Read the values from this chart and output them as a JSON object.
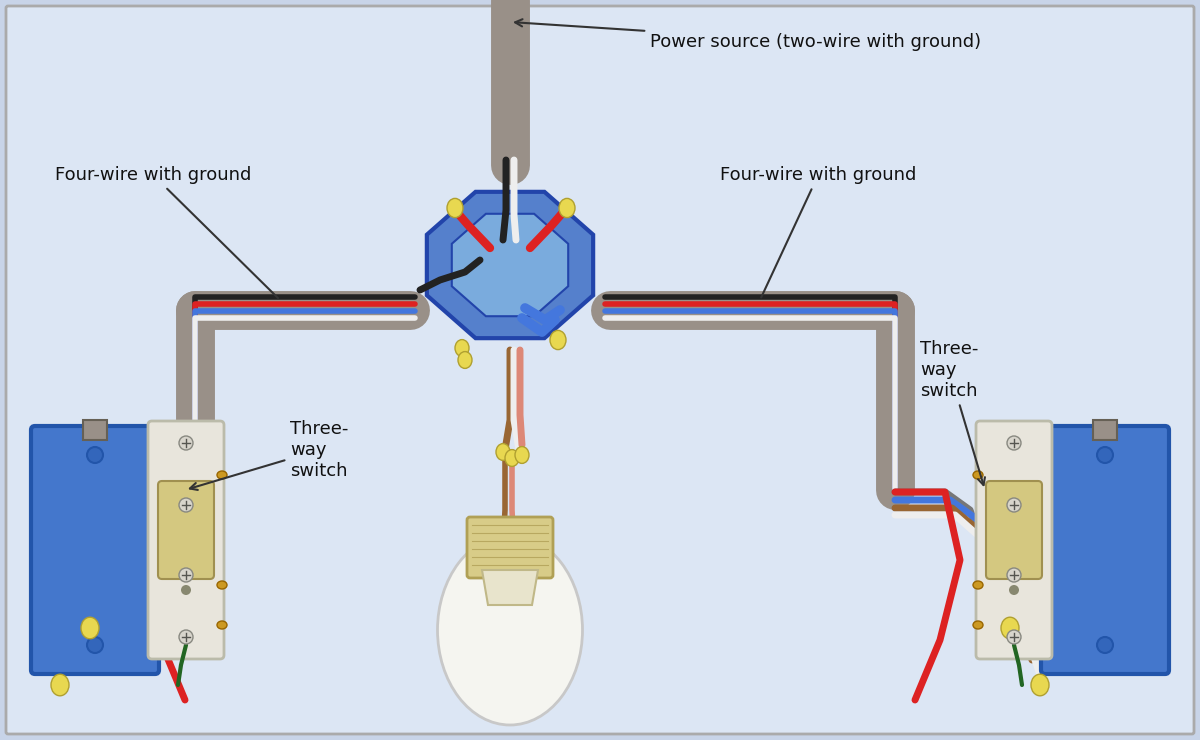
{
  "background_color": "#c8d4e8",
  "border_color": "#aaaaaa",
  "labels": {
    "power_source": "Power source (two-wire with ground)",
    "four_wire_left": "Four-wire with ground",
    "four_wire_right": "Four-wire with ground",
    "three_way_left": "Three-\nway\nswitch",
    "three_way_right": "Three-\nway\nswitch"
  },
  "colors": {
    "background": "#c8d4e8",
    "background_inner": "#d0daea",
    "border": "#aaaaaa",
    "conduit": "#999088",
    "conduit_edge": "#777066",
    "junction_box_fill": "#5580cc",
    "junction_box_border": "#2244aa",
    "junction_box_inner": "#7aabdd",
    "switch_box_fill": "#4477cc",
    "switch_box_border": "#2255aa",
    "switch_plate": "#e8e5dc",
    "switch_plate_border": "#bbbbaa",
    "switch_toggle": "#d4c880",
    "switch_toggle_border": "#a09050",
    "wire_red": "#dd2222",
    "wire_black": "#222222",
    "wire_blue": "#4477dd",
    "wire_white": "#eeeeee",
    "wire_brown": "#996633",
    "wire_gray": "#777777",
    "wire_bare": "#ccaa44",
    "connector_yellow": "#e8d850",
    "connector_border": "#b0a030",
    "text_color": "#111111",
    "annotation_line": "#333333",
    "bulb_glass": "#f5f5f0",
    "bulb_socket": "#d8cc88",
    "bulb_neck": "#e8e4cc"
  }
}
